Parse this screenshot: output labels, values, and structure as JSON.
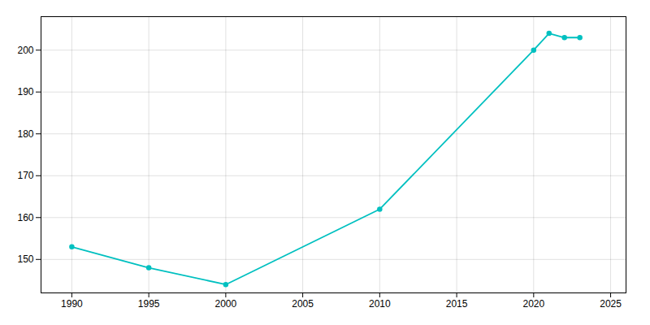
{
  "chart_data": {
    "type": "line",
    "x": [
      1990,
      1995,
      2000,
      2010,
      2020,
      2021,
      2022,
      2023
    ],
    "values": [
      153,
      148,
      144,
      162,
      200,
      204,
      203,
      203
    ],
    "color": "#00C0C0",
    "marker": "circle",
    "xlim": [
      1988,
      2026
    ],
    "ylim": [
      142,
      208
    ],
    "xticks": [
      1990,
      1995,
      2000,
      2005,
      2010,
      2015,
      2020,
      2025
    ],
    "yticks": [
      150,
      160,
      170,
      180,
      190,
      200
    ],
    "grid": true
  }
}
